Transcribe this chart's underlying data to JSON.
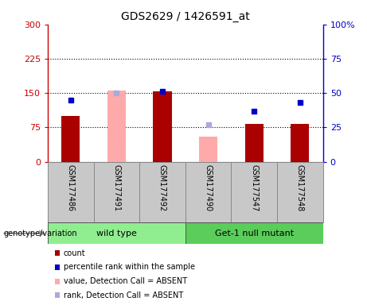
{
  "title": "GDS2629 / 1426591_at",
  "samples": [
    "GSM177486",
    "GSM177491",
    "GSM177492",
    "GSM177490",
    "GSM177547",
    "GSM177548"
  ],
  "count_bars": {
    "GSM177486": {
      "value": 100,
      "absent": false,
      "color": "#aa0000"
    },
    "GSM177491": {
      "absent": true,
      "bar_value": 155,
      "color": "#ffaaaa"
    },
    "GSM177492": {
      "value": 153,
      "absent": false,
      "color": "#aa0000"
    },
    "GSM177490": {
      "absent": true,
      "bar_value": 55,
      "color": "#ffaaaa"
    },
    "GSM177547": {
      "value": 83,
      "absent": false,
      "color": "#aa0000"
    },
    "GSM177548": {
      "value": 83,
      "absent": false,
      "color": "#aa0000"
    }
  },
  "rank_dots": {
    "GSM177486": {
      "value": 45,
      "absent": false,
      "color": "#0000cc"
    },
    "GSM177491": {
      "value": 50,
      "absent": true,
      "color": "#aaaadd"
    },
    "GSM177492": {
      "value": 51,
      "absent": false,
      "color": "#0000cc"
    },
    "GSM177490": {
      "value": 27,
      "absent": true,
      "color": "#aaaadd"
    },
    "GSM177547": {
      "value": 37,
      "absent": false,
      "color": "#0000cc"
    },
    "GSM177548": {
      "value": 43,
      "absent": false,
      "color": "#0000cc"
    }
  },
  "left_ylim": [
    0,
    300
  ],
  "right_ylim": [
    0,
    100
  ],
  "left_yticks": [
    0,
    75,
    150,
    225,
    300
  ],
  "right_ytick_vals": [
    0,
    25,
    50,
    75,
    100
  ],
  "right_ytick_labels": [
    "0",
    "25",
    "50",
    "75",
    "100%"
  ],
  "hlines": [
    75,
    150,
    225
  ],
  "left_axis_color": "#cc0000",
  "right_axis_color": "#0000cc",
  "plot_bg": "#ffffff",
  "sample_box_color": "#c8c8c8",
  "wt_color": "#90ee90",
  "mut_color": "#5acd5a",
  "wt_label": "wild type",
  "mut_label": "Get-1 null mutant",
  "genotype_label": "genotype/variation",
  "legend": [
    {
      "label": "count",
      "color": "#aa0000"
    },
    {
      "label": "percentile rank within the sample",
      "color": "#0000cc"
    },
    {
      "label": "value, Detection Call = ABSENT",
      "color": "#ffaaaa"
    },
    {
      "label": "rank, Detection Call = ABSENT",
      "color": "#aaaadd"
    }
  ]
}
